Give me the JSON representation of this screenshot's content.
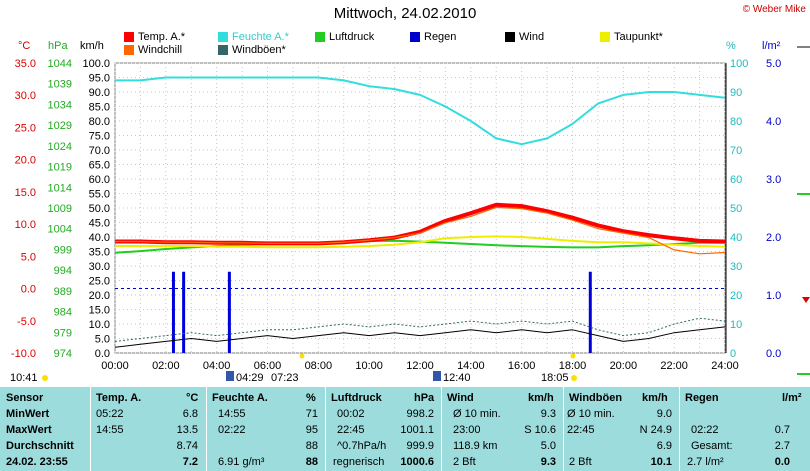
{
  "title": "Mittwoch, 24.02.2010",
  "credit": "© Weber Mike",
  "legend": [
    {
      "label": "Temp. A.*",
      "color": "#ff0000"
    },
    {
      "label": "Feuchte A.*",
      "color": "#33dddd"
    },
    {
      "label": "Luftdruck",
      "color": "#22cc22"
    },
    {
      "label": "Regen",
      "color": "#0000cc"
    },
    {
      "label": "Wind",
      "color": "#000000"
    },
    {
      "label": "Taupunkt*",
      "color": "#eeee00"
    },
    {
      "label": "Windchill",
      "color": "#ff6600"
    },
    {
      "label": "Windböen*",
      "color": "#336666"
    }
  ],
  "axes": {
    "temp_unit": "°C",
    "hpa_unit": "hPa",
    "kmh_unit": "km/h",
    "pct_unit": "%",
    "rain_unit": "l/m²",
    "temp_ticks": [
      "35.0",
      "30.0",
      "25.0",
      "20.0",
      "15.0",
      "10.0",
      "5.0",
      "0.0",
      "-5.0",
      "-10.0"
    ],
    "hpa_ticks": [
      "1044",
      "1039",
      "1034",
      "1029",
      "1024",
      "1019",
      "1014",
      "1009",
      "1004",
      "999",
      "994",
      "989",
      "984",
      "979",
      "974"
    ],
    "kmh_ticks": [
      "100.0",
      "95.0",
      "90.0",
      "85.0",
      "80.0",
      "75.0",
      "70.0",
      "65.0",
      "60.0",
      "55.0",
      "50.0",
      "45.0",
      "40.0",
      "35.0",
      "30.0",
      "25.0",
      "20.0",
      "15.0",
      "10.0",
      "5.0",
      "0.0"
    ],
    "pct_ticks": [
      "100",
      "90",
      "80",
      "70",
      "60",
      "50",
      "40",
      "30",
      "20",
      "10",
      "0"
    ],
    "rain_ticks": [
      "5.0",
      "4.0",
      "3.0",
      "2.0",
      "1.0",
      "0.0"
    ],
    "time_ticks": [
      "00:00",
      "02:00",
      "04:00",
      "06:00",
      "08:00",
      "10:00",
      "12:00",
      "14:00",
      "16:00",
      "18:00",
      "20:00",
      "22:00",
      "24:00"
    ]
  },
  "markers": {
    "left_time": "10:41",
    "sunrise_label": "04:29",
    "sunrise2_label": "07:23",
    "moon_label": "12:40",
    "sunset_label": "18:05"
  },
  "chart_data": {
    "type": "line",
    "title": "Mittwoch, 24.02.2010",
    "x_range": [
      "00:00",
      "24:00"
    ],
    "ylim_kmh": [
      0,
      100
    ],
    "ylim_temp": [
      -10,
      35
    ],
    "ylim_hpa": [
      974,
      1044
    ],
    "ylim_pct": [
      0,
      100
    ],
    "ylim_rain": [
      0,
      5
    ],
    "x_hours": [
      0,
      1,
      2,
      3,
      4,
      5,
      6,
      7,
      8,
      9,
      10,
      11,
      12,
      13,
      14,
      15,
      16,
      17,
      18,
      19,
      20,
      21,
      22,
      23,
      24
    ],
    "series": [
      {
        "name": "Temp. A.*",
        "axis": "temp",
        "color": "#ff0000",
        "values": [
          7.3,
          7.3,
          7.2,
          7.2,
          7.1,
          7.1,
          7.0,
          7.0,
          7.0,
          7.2,
          7.5,
          7.9,
          8.8,
          10.5,
          11.7,
          13.0,
          12.8,
          12.0,
          11.0,
          9.8,
          8.9,
          8.3,
          7.8,
          7.4,
          7.3
        ]
      },
      {
        "name": "Windchill",
        "axis": "temp",
        "color": "#ff6600",
        "values": [
          7.3,
          7.3,
          7.2,
          7.2,
          7.1,
          7.1,
          7.0,
          7.0,
          7.0,
          7.2,
          7.5,
          7.9,
          8.6,
          10.2,
          11.2,
          12.6,
          12.4,
          11.7,
          10.6,
          9.3,
          8.6,
          7.9,
          6.0,
          5.4,
          5.6
        ]
      },
      {
        "name": "Taupunkt*",
        "axis": "temp",
        "color": "#eeee00",
        "values": [
          6.6,
          6.6,
          6.6,
          6.6,
          6.5,
          6.5,
          6.4,
          6.4,
          6.4,
          6.5,
          6.6,
          6.8,
          7.2,
          7.8,
          8.0,
          8.1,
          8.0,
          7.7,
          7.4,
          7.2,
          7.2,
          7.0,
          6.8,
          6.6,
          6.5
        ]
      },
      {
        "name": "Luftdruck",
        "axis": "hpa",
        "color": "#22cc22",
        "values": [
          998.2,
          998.6,
          999.1,
          999.5,
          999.8,
          1000.1,
          1000.3,
          1000.5,
          1000.6,
          1000.8,
          1001.0,
          1001.1,
          1000.9,
          1000.6,
          1000.3,
          1000.0,
          999.8,
          999.6,
          999.5,
          999.5,
          999.8,
          1000.0,
          1000.3,
          1000.6,
          1000.6
        ]
      },
      {
        "name": "Feuchte A.*",
        "axis": "pct",
        "color": "#33dddd",
        "values": [
          94,
          94,
          95,
          95,
          95,
          95,
          95,
          95,
          95,
          94,
          92,
          91,
          89,
          85,
          80,
          74,
          72,
          74,
          79,
          86,
          89,
          90,
          90,
          89,
          88
        ]
      },
      {
        "name": "Wind",
        "axis": "kmh",
        "color": "#000000",
        "values": [
          2,
          3,
          4,
          5,
          4,
          5,
          6,
          5,
          6,
          7,
          6,
          7,
          6,
          7,
          8,
          7,
          8,
          7,
          8,
          6,
          4,
          5,
          7,
          8,
          9
        ]
      },
      {
        "name": "Windböen*",
        "axis": "kmh",
        "color": "#336666",
        "values": [
          4,
          5,
          6,
          7,
          6,
          7,
          8,
          8,
          9,
          10,
          9,
          10,
          9,
          10,
          11,
          10,
          11,
          10,
          11,
          8,
          6,
          7,
          10,
          12,
          11
        ]
      }
    ],
    "rain_events": [
      {
        "hour": 2.3,
        "value": 1.4
      },
      {
        "hour": 2.7,
        "value": 1.4
      },
      {
        "hour": 4.5,
        "value": 1.4
      },
      {
        "hour": 18.7,
        "value": 1.4
      }
    ]
  },
  "table": {
    "headers": {
      "sensor": "Sensor",
      "temp": "Temp. A.",
      "temp_u": "°C",
      "hum": "Feuchte A.",
      "hum_u": "%",
      "press": "Luftdruck",
      "press_u": "hPa",
      "wind": "Wind",
      "wind_u": "km/h",
      "gust": "Windböen",
      "gust_u": "km/h",
      "rain": "Regen",
      "rain_u": "l/m²"
    },
    "rows": [
      {
        "label": "MinWert",
        "c1": "05:22",
        "c2": "6.8",
        "c3": "14:55",
        "c4": "71",
        "c5": "00:02",
        "c6": "998.2",
        "c7": "Ø 10 min.",
        "c8": "9.3",
        "c9": "Ø 10 min.",
        "c10": "9.0",
        "c11": "",
        "c12": ""
      },
      {
        "label": "MaxWert",
        "c1": "14:55",
        "c2": "13.5",
        "c3": "02:22",
        "c4": "95",
        "c5": "22:45",
        "c6": "1001.1",
        "c7": "23:00",
        "c7b": "S 10.6",
        "c9": "22:45",
        "c9b": "N 24.9",
        "c11": "02:22",
        "c12": "0.7"
      },
      {
        "label": "Durchschnitt",
        "c1": "",
        "c2": "8.74",
        "c3": "",
        "c4": "88",
        "c5": "^0.7hPa/h",
        "c6": "999.9",
        "c7": "118.9 km",
        "c8": "5.0",
        "c9": "",
        "c10": "6.9",
        "c11": "Gesamt:",
        "c12": "2.7"
      },
      {
        "label": "24.02.  23:55",
        "c1": "",
        "c2": "7.2",
        "c3": "6.91 g/m³",
        "c4": "88",
        "c5": "regnerisch",
        "c6": "1000.6",
        "c7": "2 Bft",
        "c8": "9.3",
        "c9": "2 Bft",
        "c10": "10.1",
        "c11": "2.7 l/m²",
        "c12": "0.0"
      }
    ]
  }
}
